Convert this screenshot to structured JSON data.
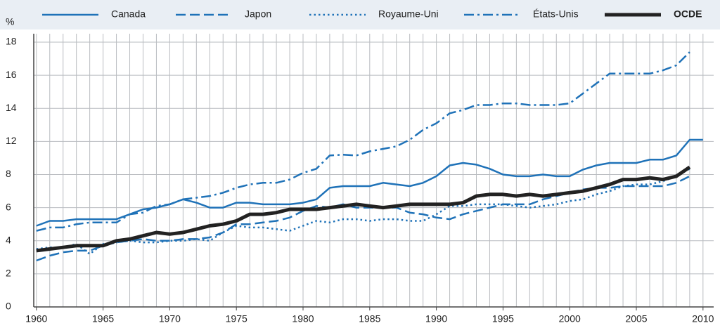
{
  "chart_data": {
    "type": "line",
    "y_label": "%",
    "x": [
      1960,
      1961,
      1962,
      1963,
      1964,
      1965,
      1966,
      1967,
      1968,
      1969,
      1970,
      1971,
      1972,
      1973,
      1974,
      1975,
      1976,
      1977,
      1978,
      1979,
      1980,
      1981,
      1982,
      1983,
      1984,
      1985,
      1986,
      1987,
      1988,
      1989,
      1990,
      1991,
      1992,
      1993,
      1994,
      1995,
      1996,
      1997,
      1998,
      1999,
      2000,
      2001,
      2002,
      2003,
      2004,
      2005,
      2006,
      2007,
      2008,
      2009,
      2010
    ],
    "xlim": [
      1959.8,
      2010.8
    ],
    "xticks": [
      1960,
      1965,
      1970,
      1975,
      1980,
      1985,
      1990,
      1995,
      2000,
      2005,
      2010
    ],
    "ylim": [
      0,
      18
    ],
    "yticks": [
      0,
      2,
      4,
      6,
      8,
      12,
      14,
      16,
      18
    ],
    "grid": true,
    "legend": "top",
    "series": [
      {
        "name": "Canada",
        "color": "#1f72b8",
        "dash": "solid",
        "width": 2.5,
        "values": [
          4.9,
          5.2,
          5.2,
          5.3,
          5.3,
          5.3,
          5.3,
          5.6,
          5.9,
          6.0,
          6.2,
          6.5,
          6.3,
          6.0,
          6.0,
          6.3,
          6.3,
          6.2,
          6.2,
          6.2,
          6.3,
          6.5,
          7.2,
          7.3,
          7.3,
          7.3,
          7.5,
          7.4,
          7.3,
          7.5,
          7.9,
          9.1,
          9.4,
          9.2,
          8.7,
          8.0,
          7.9,
          7.9,
          8.0,
          7.9,
          7.9,
          8.6,
          9.1,
          9.4,
          9.4,
          9.4,
          9.8,
          9.8,
          10.3,
          12.1,
          12.1
        ]
      },
      {
        "name": "Japon",
        "color": "#1f72b8",
        "dash": "dashed",
        "width": 2.5,
        "values": [
          2.8,
          3.1,
          3.3,
          3.4,
          3.4,
          3.7,
          3.9,
          4.0,
          4.1,
          4.0,
          4.0,
          4.1,
          4.1,
          4.2,
          4.5,
          5.0,
          5.0,
          5.1,
          5.2,
          5.4,
          5.8,
          6.1,
          6.0,
          6.2,
          6.0,
          6.0,
          6.0,
          6.0,
          5.7,
          5.6,
          5.4,
          5.3,
          5.6,
          5.8,
          6.0,
          6.2,
          6.2,
          6.2,
          6.5,
          6.7,
          6.9,
          7.1,
          7.2,
          7.2,
          7.3,
          7.3,
          7.3,
          7.3,
          7.5,
          7.9,
          null
        ]
      },
      {
        "name": "Royaume-Uni",
        "color": "#1f72b8",
        "dash": "dotted",
        "width": 2.5,
        "values": [
          3.5,
          3.6,
          3.6,
          3.8,
          3.2,
          3.8,
          3.9,
          4.0,
          3.9,
          3.9,
          4.0,
          4.0,
          4.1,
          4.0,
          4.5,
          4.9,
          4.8,
          4.8,
          4.7,
          4.6,
          4.9,
          5.2,
          5.1,
          5.3,
          5.3,
          5.2,
          5.3,
          5.3,
          5.2,
          5.2,
          5.6,
          6.1,
          6.1,
          6.2,
          6.2,
          6.2,
          6.1,
          6.0,
          6.1,
          6.2,
          6.4,
          6.5,
          6.8,
          7.0,
          7.3,
          7.4,
          7.4,
          7.6,
          7.9,
          8.7,
          null
        ]
      },
      {
        "name": "États-Unis",
        "color": "#1f72b8",
        "dash": "dashdot",
        "width": 2.5,
        "values": [
          4.6,
          4.8,
          4.8,
          5.0,
          5.1,
          5.1,
          5.1,
          5.6,
          5.7,
          6.1,
          6.2,
          6.5,
          6.6,
          6.7,
          6.9,
          7.2,
          7.4,
          7.5,
          7.5,
          7.7,
          8.2,
          8.7,
          10.3,
          10.4,
          10.3,
          10.8,
          11.1,
          11.4,
          12.1,
          12.7,
          13.1,
          13.7,
          13.9,
          14.2,
          14.2,
          14.3,
          14.3,
          14.2,
          14.2,
          14.2,
          14.3,
          14.9,
          15.5,
          16.1,
          16.1,
          16.1,
          16.1,
          16.3,
          16.6,
          17.4,
          null
        ]
      },
      {
        "name": "OCDE",
        "color": "#222222",
        "dash": "solid",
        "width": 5,
        "bold": true,
        "values": [
          3.4,
          3.5,
          3.6,
          3.7,
          3.7,
          3.7,
          4.0,
          4.1,
          4.3,
          4.5,
          4.4,
          4.5,
          4.7,
          4.9,
          5.0,
          5.2,
          5.6,
          5.6,
          5.7,
          5.9,
          5.9,
          5.9,
          6.0,
          6.1,
          6.2,
          6.1,
          6.0,
          6.1,
          6.2,
          6.2,
          6.2,
          6.2,
          6.3,
          6.7,
          6.8,
          6.8,
          6.7,
          6.8,
          6.7,
          6.8,
          6.9,
          7.0,
          7.2,
          7.4,
          7.7,
          7.7,
          7.8,
          7.7,
          7.9,
          8.9,
          null
        ]
      }
    ]
  }
}
